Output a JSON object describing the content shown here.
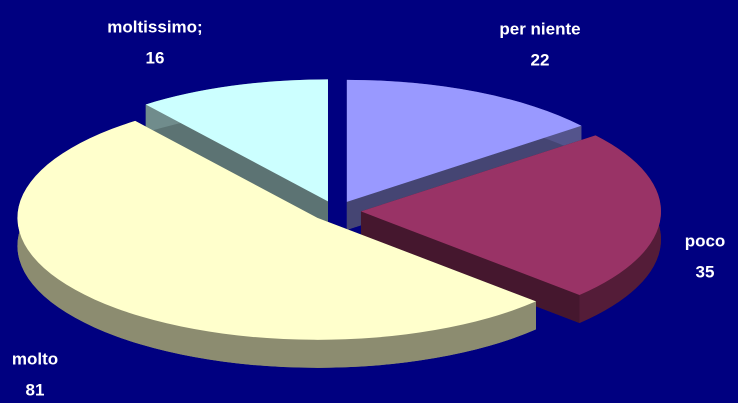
{
  "chart_data": {
    "type": "pie3d",
    "categories": [
      "per niente",
      "poco",
      "molto",
      "moltissimo;"
    ],
    "values": [
      22,
      35,
      81,
      16
    ],
    "colors": [
      "#9999ff",
      "#993366",
      "#ffffcc",
      "#ccffff"
    ],
    "background": "#000080"
  }
}
